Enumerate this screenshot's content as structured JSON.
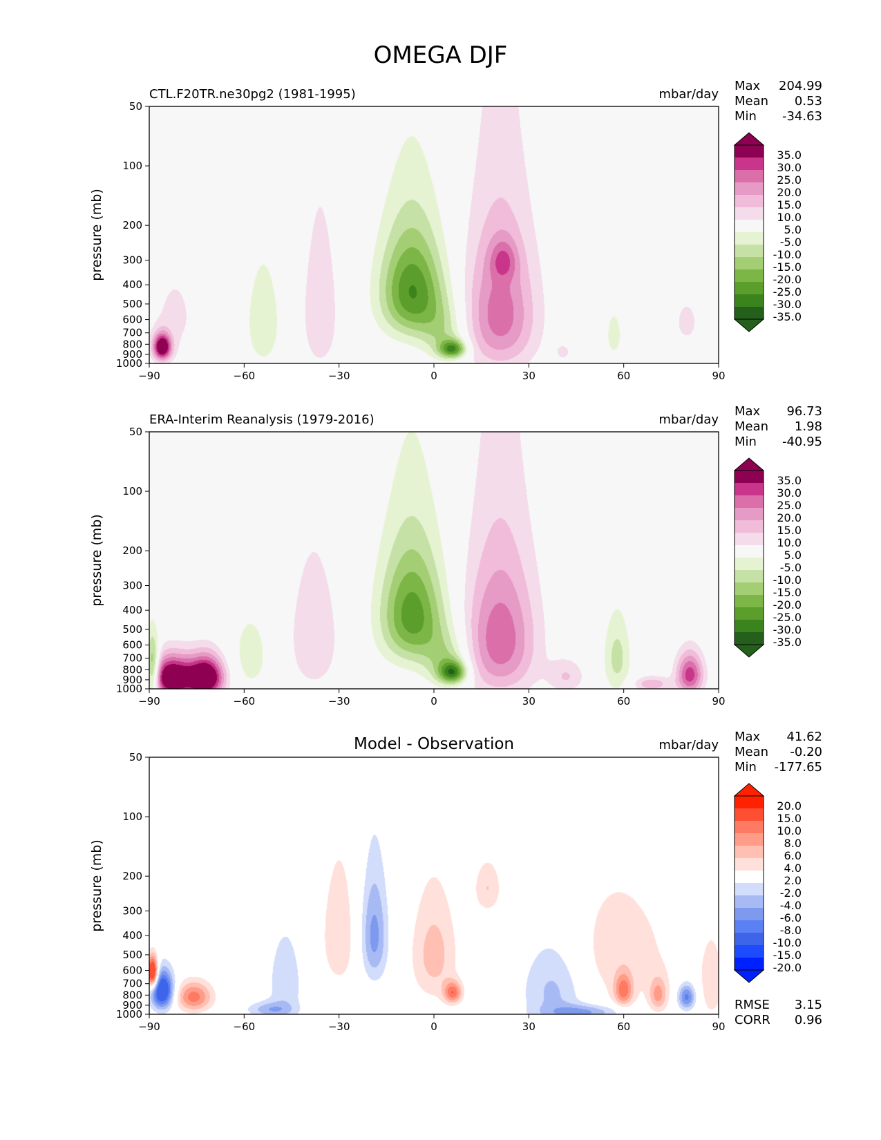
{
  "figure": {
    "title": "OMEGA DJF"
  },
  "colors": {
    "model_obs": [
      "#24601b",
      "#3b841d",
      "#5c9e2c",
      "#7cb646",
      "#a3ce73",
      "#c5e1a5",
      "#e6f3d3",
      "#f7f7f7",
      "#f4dcea",
      "#f1bcd9",
      "#e69ac6",
      "#da6faa",
      "#c8358a",
      "#8e0152"
    ],
    "diff": [
      "#0021ff",
      "#1d4cff",
      "#3d64e9",
      "#5a80f3",
      "#7d9aee",
      "#a8baf4",
      "#d2dcfb",
      "#ffffff",
      "#ffe0da",
      "#ffbfb2",
      "#ff9c88",
      "#ff7a63",
      "#ff4f32",
      "#ff2200"
    ]
  },
  "chart_data": [
    {
      "type": "heatmap",
      "id": "model",
      "title_left": "CTL.F20TR.ne30pg2 (1981-1995)",
      "units": "mbar/day",
      "ylabel": "pressure (mb)",
      "xlim": [
        -90,
        90
      ],
      "ylim": [
        1000,
        50
      ],
      "xticks": [
        "−90",
        "−60",
        "−30",
        "0",
        "30",
        "60",
        "90"
      ],
      "yticks": [
        "50",
        "100",
        "200",
        "300",
        "400",
        "500",
        "600",
        "700",
        "800",
        "900",
        "1000"
      ],
      "stats": [
        {
          "label": "Max",
          "value": "204.99"
        },
        {
          "label": "Mean",
          "value": "0.53"
        },
        {
          "label": "Min",
          "value": "-34.63"
        }
      ],
      "colorbar_labels": [
        "35.0",
        "30.0",
        "25.0",
        "20.0",
        "15.0",
        "10.0",
        "5.0",
        "-5.0",
        "-10.0",
        "-15.0",
        "-20.0",
        "-25.0",
        "-30.0",
        "-35.0"
      ],
      "palette": "model_obs",
      "blobs": [
        {
          "lon": -7,
          "p": 430,
          "slon": 7,
          "sp": 190,
          "amp": -30
        },
        {
          "lon": 3,
          "p": 700,
          "slon": 5,
          "sp": 170,
          "amp": -12
        },
        {
          "lon": 6,
          "p": 850,
          "slon": 3,
          "sp": 65,
          "amp": -28
        },
        {
          "lon": 21,
          "p": 560,
          "slon": 8,
          "sp": 320,
          "amp": 23
        },
        {
          "lon": 22,
          "p": 300,
          "slon": 3,
          "sp": 50,
          "amp": 12
        },
        {
          "lon": -36,
          "p": 550,
          "slon": 4,
          "sp": 330,
          "amp": 10
        },
        {
          "lon": -54,
          "p": 620,
          "slon": 4,
          "sp": 280,
          "amp": -9
        },
        {
          "lon": -86,
          "p": 830,
          "slon": 2,
          "sp": 90,
          "amp": 40
        },
        {
          "lon": -82,
          "p": 580,
          "slon": 6,
          "sp": 260,
          "amp": 6
        },
        {
          "lon": 57,
          "p": 720,
          "slon": 3,
          "sp": 230,
          "amp": -6
        },
        {
          "lon": 80,
          "p": 620,
          "slon": 4,
          "sp": 170,
          "amp": 6
        },
        {
          "lon": 41,
          "p": 880,
          "slon": 2,
          "sp": 70,
          "amp": 6
        }
      ]
    },
    {
      "type": "heatmap",
      "id": "obs",
      "title_left": "ERA-Interim Reanalysis (1979-2016)",
      "units": "mbar/day",
      "ylabel": "pressure (mb)",
      "xlim": [
        -90,
        90
      ],
      "ylim": [
        1000,
        50
      ],
      "xticks": [
        "−90",
        "−60",
        "−30",
        "0",
        "30",
        "60",
        "90"
      ],
      "yticks": [
        "50",
        "100",
        "200",
        "300",
        "400",
        "500",
        "600",
        "700",
        "800",
        "900",
        "1000"
      ],
      "stats": [
        {
          "label": "Max",
          "value": "96.73"
        },
        {
          "label": "Mean",
          "value": "1.98"
        },
        {
          "label": "Min",
          "value": "-40.95"
        }
      ],
      "colorbar_labels": [
        "35.0",
        "30.0",
        "25.0",
        "20.0",
        "15.0",
        "10.0",
        "5.0",
        "-5.0",
        "-10.0",
        "-15.0",
        "-20.0",
        "-25.0",
        "-30.0",
        "-35.0"
      ],
      "palette": "model_obs",
      "blobs": [
        {
          "lon": -7,
          "p": 420,
          "slon": 7,
          "sp": 200,
          "amp": -28
        },
        {
          "lon": 4,
          "p": 720,
          "slon": 5,
          "sp": 170,
          "amp": -14
        },
        {
          "lon": 6,
          "p": 830,
          "slon": 3,
          "sp": 75,
          "amp": -28
        },
        {
          "lon": 21,
          "p": 560,
          "slon": 8,
          "sp": 320,
          "amp": 24
        },
        {
          "lon": -38,
          "p": 550,
          "slon": 6,
          "sp": 320,
          "amp": 9
        },
        {
          "lon": -58,
          "p": 680,
          "slon": 5,
          "sp": 260,
          "amp": -7
        },
        {
          "lon": -83,
          "p": 880,
          "slon": 5,
          "sp": 150,
          "amp": 42
        },
        {
          "lon": -72,
          "p": 880,
          "slon": 4,
          "sp": 150,
          "amp": 42
        },
        {
          "lon": -89,
          "p": 820,
          "slon": 1.5,
          "sp": 200,
          "amp": -30
        },
        {
          "lon": 58,
          "p": 700,
          "slon": 3,
          "sp": 230,
          "amp": -12
        },
        {
          "lon": 81,
          "p": 850,
          "slon": 3,
          "sp": 150,
          "amp": 28
        },
        {
          "lon": 69,
          "p": 950,
          "slon": 4,
          "sp": 60,
          "amp": 14
        },
        {
          "lon": 42,
          "p": 870,
          "slon": 4,
          "sp": 120,
          "amp": 10
        }
      ]
    },
    {
      "type": "heatmap",
      "id": "diff",
      "title_center": "Model - Observation",
      "units": "mbar/day",
      "ylabel": "pressure (mb)",
      "xlim": [
        -90,
        90
      ],
      "ylim": [
        1000,
        50
      ],
      "xticks": [
        "−90",
        "−60",
        "−30",
        "0",
        "30",
        "60",
        "90"
      ],
      "yticks": [
        "50",
        "100",
        "200",
        "300",
        "400",
        "500",
        "600",
        "700",
        "800",
        "900",
        "1000"
      ],
      "stats": [
        {
          "label": "Max",
          "value": "41.62"
        },
        {
          "label": "Mean",
          "value": "-0.20"
        },
        {
          "label": "Min",
          "value": "-177.65"
        }
      ],
      "extra_stats": [
        {
          "label": "RMSE",
          "value": "3.15"
        },
        {
          "label": "CORR",
          "value": "0.96"
        }
      ],
      "colorbar_labels": [
        "20.0",
        "15.0",
        "10.0",
        "8.0",
        "6.0",
        "4.0",
        "2.0",
        "-2.0",
        "-4.0",
        "-6.0",
        "-8.0",
        "-10.0",
        "-15.0",
        "-20.0"
      ],
      "palette": "diff",
      "blobs": [
        {
          "lon": -19,
          "p": 400,
          "slon": 3,
          "sp": 180,
          "amp": -7
        },
        {
          "lon": -47,
          "p": 700,
          "slon": 4,
          "sp": 280,
          "amp": -3.5
        },
        {
          "lon": -52,
          "p": 950,
          "slon": 5,
          "sp": 60,
          "amp": -5
        },
        {
          "lon": 0,
          "p": 500,
          "slon": 5,
          "sp": 220,
          "amp": 5
        },
        {
          "lon": 6,
          "p": 780,
          "slon": 2,
          "sp": 70,
          "amp": 9
        },
        {
          "lon": 17,
          "p": 230,
          "slon": 3,
          "sp": 50,
          "amp": 4
        },
        {
          "lon": -30,
          "p": 400,
          "slon": 5,
          "sp": 260,
          "amp": 3
        },
        {
          "lon": -86,
          "p": 760,
          "slon": 2.5,
          "sp": 120,
          "amp": -15
        },
        {
          "lon": -89,
          "p": 620,
          "slon": 1.2,
          "sp": 80,
          "amp": 18
        },
        {
          "lon": -76,
          "p": 820,
          "slon": 4,
          "sp": 100,
          "amp": 9
        },
        {
          "lon": 38,
          "p": 750,
          "slon": 7,
          "sp": 280,
          "amp": -5
        },
        {
          "lon": 48,
          "p": 980,
          "slon": 8,
          "sp": 60,
          "amp": -6
        },
        {
          "lon": 60,
          "p": 760,
          "slon": 2,
          "sp": 100,
          "amp": 8
        },
        {
          "lon": 71,
          "p": 800,
          "slon": 2,
          "sp": 110,
          "amp": 6
        },
        {
          "lon": 80,
          "p": 820,
          "slon": 2,
          "sp": 90,
          "amp": -9
        },
        {
          "lon": 58,
          "p": 500,
          "slon": 14,
          "sp": 290,
          "amp": 3
        },
        {
          "lon": 88,
          "p": 700,
          "slon": 3,
          "sp": 260,
          "amp": 3
        }
      ]
    }
  ]
}
